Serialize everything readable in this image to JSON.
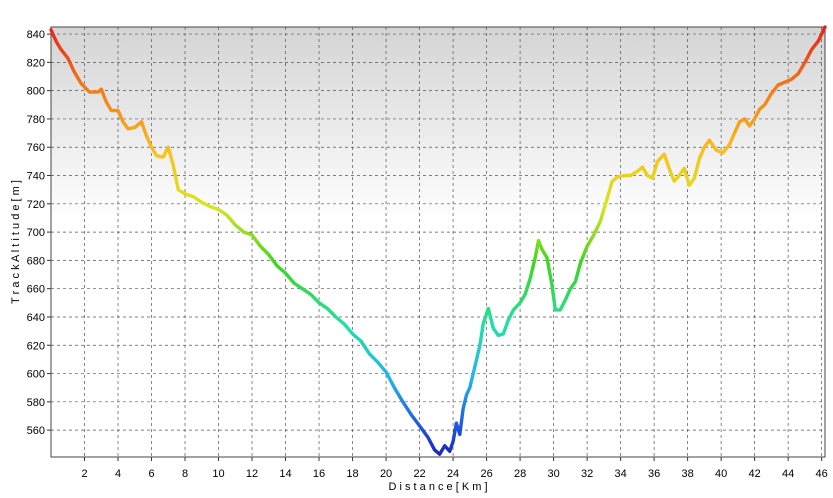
{
  "chart_data": {
    "type": "line",
    "title": "",
    "xlabel": "D i s t a n c e   [ K m ]",
    "ylabel": "T r a c k   A l t i t u d e   [ m ]",
    "xlim": [
      0,
      46.2
    ],
    "ylim": [
      541,
      845
    ],
    "xticks": [
      2,
      4,
      6,
      8,
      10,
      12,
      14,
      16,
      18,
      20,
      22,
      24,
      26,
      28,
      30,
      32,
      34,
      36,
      38,
      40,
      42,
      44,
      46
    ],
    "yticks": [
      560,
      580,
      600,
      620,
      640,
      660,
      680,
      700,
      720,
      740,
      760,
      780,
      800,
      820,
      840
    ],
    "grid": true,
    "legend": "none",
    "background": "gradient-grey-top",
    "color_scale": "altitude-rainbow: red (high) to blue (low)",
    "series": [
      {
        "x": [
          0.0,
          0.3,
          0.6,
          1.0,
          1.4,
          1.8,
          2.3,
          2.8,
          3.0,
          3.3,
          3.6,
          4.0,
          4.3,
          4.6,
          5.0,
          5.4,
          5.7,
          6.0,
          6.3,
          6.7,
          7.0,
          7.3,
          7.6,
          8.0,
          8.5,
          9.0,
          9.5,
          10.0,
          10.5,
          11.0,
          11.5,
          12.0,
          12.5,
          13.0,
          13.5,
          14.0,
          14.5,
          15.0,
          15.5,
          16.0,
          16.5,
          17.0,
          17.5,
          18.0,
          18.5,
          19.0,
          19.5,
          20.0,
          20.5,
          21.0,
          21.5,
          22.0,
          22.5,
          22.9,
          23.2,
          23.5,
          23.8,
          24.0,
          24.2,
          24.4,
          24.6,
          24.8,
          25.0,
          25.3,
          25.6,
          25.8,
          26.1,
          26.4,
          26.7,
          27.0,
          27.3,
          27.6,
          28.0,
          28.3,
          28.6,
          28.9,
          29.1,
          29.3,
          29.6,
          29.9,
          30.1,
          30.4,
          30.7,
          31.0,
          31.3,
          31.6,
          32.0,
          32.4,
          32.8,
          33.2,
          33.5,
          33.8,
          34.2,
          34.6,
          35.0,
          35.3,
          35.6,
          35.9,
          36.2,
          36.6,
          36.9,
          37.2,
          37.5,
          37.8,
          38.1,
          38.4,
          38.7,
          39.0,
          39.3,
          39.7,
          40.1,
          40.5,
          40.8,
          41.1,
          41.4,
          41.7,
          42.0,
          42.3,
          42.6,
          43.0,
          43.4,
          43.8,
          44.2,
          44.6,
          45.0,
          45.4,
          45.8,
          46.2
        ],
        "y": [
          843,
          835,
          829,
          823,
          813,
          805,
          799,
          799,
          801,
          792,
          786,
          786,
          778,
          773,
          774,
          778,
          768,
          760,
          754,
          753,
          760,
          747,
          730,
          727,
          725,
          721,
          718,
          716,
          712,
          705,
          700,
          698,
          690,
          684,
          676,
          671,
          664,
          660,
          656,
          650,
          646,
          640,
          635,
          628,
          623,
          614,
          608,
          601,
          590,
          580,
          571,
          563,
          555,
          546,
          543,
          549,
          545,
          552,
          565,
          557,
          575,
          585,
          590,
          605,
          620,
          635,
          646,
          632,
          627,
          628,
          638,
          645,
          650,
          656,
          667,
          682,
          694,
          688,
          682,
          663,
          645,
          645,
          652,
          660,
          665,
          678,
          690,
          698,
          708,
          724,
          736,
          739,
          740,
          740,
          743,
          746,
          740,
          738,
          750,
          755,
          745,
          736,
          740,
          745,
          733,
          738,
          752,
          760,
          765,
          758,
          756,
          762,
          770,
          778,
          780,
          775,
          780,
          787,
          790,
          798,
          804,
          806,
          808,
          812,
          820,
          829,
          835,
          845
        ]
      }
    ]
  }
}
